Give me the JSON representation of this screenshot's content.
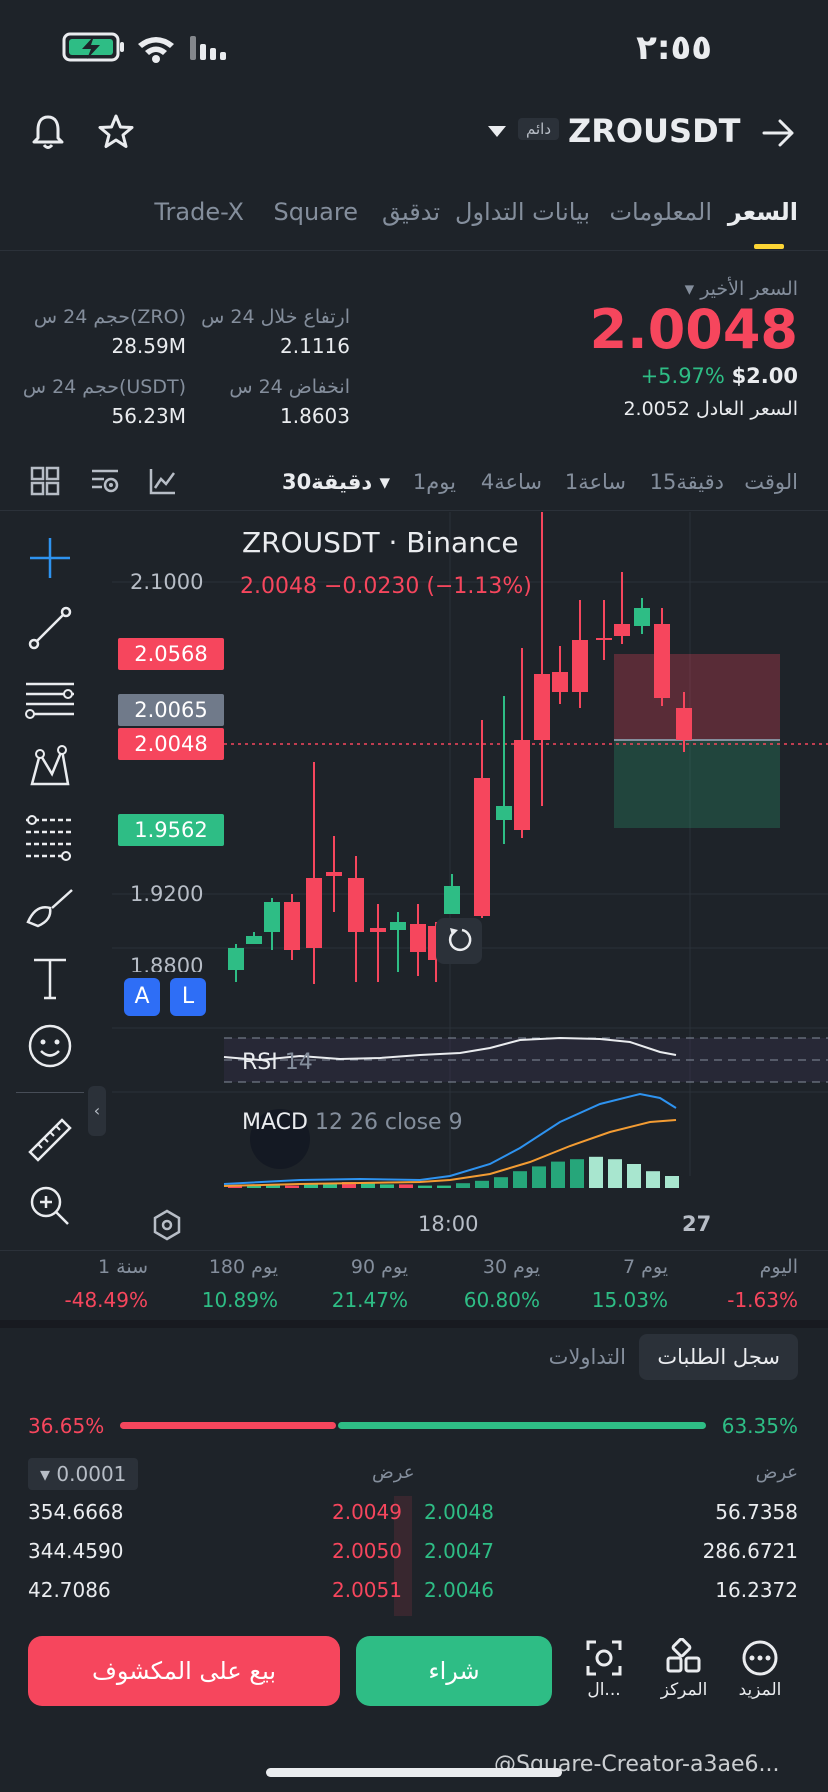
{
  "status_bar": {
    "time": "٢:٥٥"
  },
  "header": {
    "symbol": "ZROUSDT",
    "badge": "دائم"
  },
  "tabs": [
    {
      "label": "السعر",
      "active": true
    },
    {
      "label": "المعلومات"
    },
    {
      "label": "بيانات التداول"
    },
    {
      "label": "تدقيق"
    },
    {
      "label": "Square"
    },
    {
      "label": "Trade-X"
    }
  ],
  "price_panel": {
    "last_price_label": "السعر الأخير",
    "last_price": "2.0048",
    "change_pct": "+5.97%",
    "usd_price": "$2.00",
    "fair_price_label": "السعر العادل",
    "fair_price": "2.0052"
  },
  "stats": {
    "high_label": "ارتفاع خلال 24 س",
    "high_value": "2.1116",
    "vol_zro_label": "حجم 24 س(ZRO)",
    "vol_zro_value": "28.59M",
    "low_label": "انخفاض 24 س",
    "low_value": "1.8603",
    "vol_usdt_label": "حجم 24 س(USDT)",
    "vol_usdt_value": "56.23M"
  },
  "timeframes": {
    "time": "الوقت",
    "m15": "15دقيقة",
    "h1": "1ساعة",
    "h4": "4ساعة",
    "d1": "1يوم",
    "selected": "30دقيقة"
  },
  "chart": {
    "title": "ZROUSDT · Binance",
    "ohlc_line": "2.0048  −0.0230 (−1.13%)",
    "y_labels": [
      "2.1000",
      "1.9200",
      "1.8800"
    ],
    "tags": {
      "t1": "2.0568",
      "t2": "2.0065",
      "t3": "2.0048",
      "t4": "1.9562"
    },
    "rsi_label": "RSI",
    "rsi_period": "14",
    "macd_label": "MACD",
    "macd_params": "12 26 close 9",
    "x_label_1": "18:00",
    "x_label_2": "27",
    "badge_a": "A",
    "badge_l": "L"
  },
  "periods": [
    {
      "label": "اليوم",
      "value": "-1.63%",
      "color": "red"
    },
    {
      "label": "7 يوم",
      "value": "15.03%",
      "color": "green"
    },
    {
      "label": "30 يوم",
      "value": "60.80%",
      "color": "green"
    },
    {
      "label": "90 يوم",
      "value": "21.47%",
      "color": "green"
    },
    {
      "label": "180 يوم",
      "value": "10.89%",
      "color": "green"
    },
    {
      "label": "1 سنة",
      "value": "-48.49%",
      "color": "red"
    }
  ],
  "orderbook": {
    "tab_active": "سجل الطلبات",
    "tab_trades": "التداولات",
    "buy_pct": "63.35%",
    "sell_pct": "36.65%",
    "col_bid": "عرض",
    "col_ask": "عرض",
    "precision": "0.0001",
    "rows": [
      {
        "bid_qty": "56.7358",
        "bid": "2.0048",
        "ask": "2.0049",
        "ask_qty": "354.6668"
      },
      {
        "bid_qty": "286.6721",
        "bid": "2.0047",
        "ask": "2.0050",
        "ask_qty": "344.4590"
      },
      {
        "bid_qty": "16.2372",
        "bid": "2.0046",
        "ask": "2.0051",
        "ask_qty": "42.7086"
      }
    ]
  },
  "bottom": {
    "more": "المزيد",
    "center": "المركز",
    "scan": "ال...",
    "buy": "شراء",
    "sell": "بيع على المكشوف"
  },
  "watermark": "@Square-Creator-a3ae6..."
}
